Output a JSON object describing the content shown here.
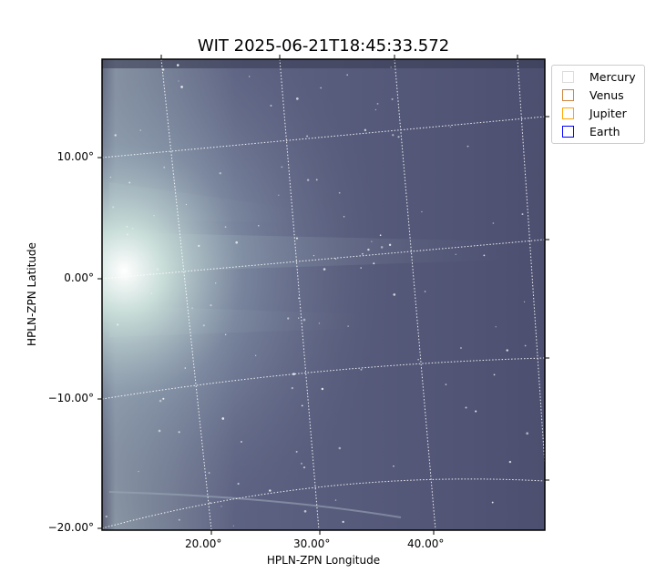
{
  "chart_data": {
    "type": "image",
    "title": "WIT 2025-06-21T18:45:33.572",
    "xlabel": "HPLN-ZPN Longitude",
    "ylabel": "HPLN-ZPN Latitude",
    "xticks": [
      "20.00°",
      "30.00°",
      "40.00°"
    ],
    "yticks": [
      "10.00°",
      "0.00°",
      "−10.00°",
      "−20.00°"
    ],
    "grid": true,
    "grid_style": "dotted white",
    "colormap": "bone-like blue-gray",
    "legend_placement": "outside upper right",
    "legend": [
      {
        "name": "Mercury",
        "color": "#dcdcdc"
      },
      {
        "name": "Venus",
        "color": "#cd853f"
      },
      {
        "name": "Jupiter",
        "color": "#ffa500"
      },
      {
        "name": "Earth",
        "color": "#0000ff"
      }
    ]
  }
}
